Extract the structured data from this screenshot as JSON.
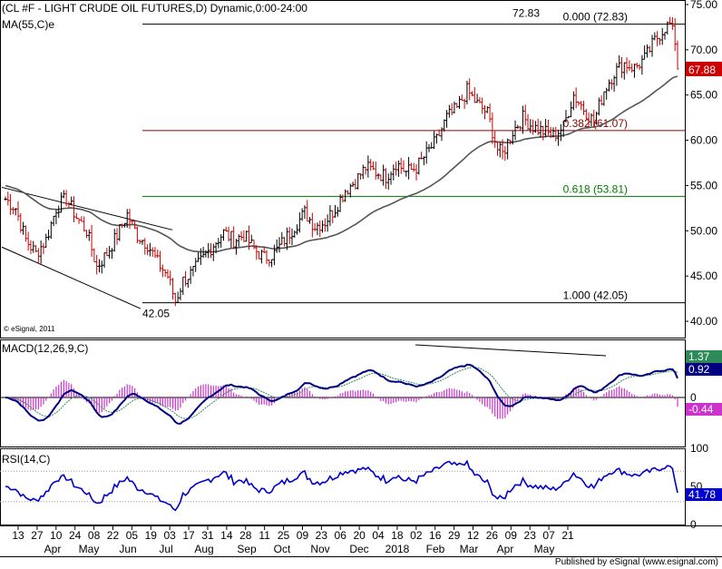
{
  "header": {
    "title": "(CL #F - LIGHT CRUDE OIL FUTURES,D) Dynamic,0:00-24:00",
    "ma_label": "MA(55,C)e",
    "copyright": "© eSignal, 2011"
  },
  "footer": {
    "text": "Published by eSignal (www.esignal.com)"
  },
  "chart_data": [
    {
      "type": "candlestick",
      "panel": "price",
      "y_ticks": [
        "75.00",
        "70.00",
        "65.00",
        "60.00",
        "55.00",
        "50.00",
        "45.00",
        "40.00"
      ],
      "ylim": [
        38.2,
        75.5
      ],
      "x_ticks": [
        "13",
        "27",
        "10",
        "24",
        "08",
        "22",
        "05",
        "19",
        "03",
        "17",
        "31",
        "14",
        "28",
        "11",
        "25",
        "09",
        "23",
        "06",
        "20",
        "04",
        "18",
        "02",
        "16",
        "29",
        "12",
        "26",
        "09",
        "23",
        "07",
        "21"
      ],
      "months": [
        "Apr",
        "May",
        "Jun",
        "Jul",
        "Aug",
        "Sep",
        "Oct",
        "Nov",
        "Dec",
        "2018",
        "Feb",
        "Mar",
        "Apr",
        "May"
      ],
      "last_price": "67.88",
      "price_path": [
        [
          0,
          53.5
        ],
        [
          4,
          52.5
        ],
        [
          8,
          49.0
        ],
        [
          12,
          47.5
        ],
        [
          16,
          49.0
        ],
        [
          20,
          52.5
        ],
        [
          24,
          53.6
        ],
        [
          28,
          51.5
        ],
        [
          32,
          50.0
        ],
        [
          36,
          46.0
        ],
        [
          40,
          47.5
        ],
        [
          44,
          49.5
        ],
        [
          48,
          51.8
        ],
        [
          52,
          49.5
        ],
        [
          56,
          48.5
        ],
        [
          60,
          46.5
        ],
        [
          64,
          45.0
        ],
        [
          67,
          42.2
        ],
        [
          70,
          44.5
        ],
        [
          74,
          45.5
        ],
        [
          78,
          47.0
        ],
        [
          82,
          48.5
        ],
        [
          86,
          49.8
        ],
        [
          90,
          49.0
        ],
        [
          94,
          49.5
        ],
        [
          98,
          48.0
        ],
        [
          102,
          47.0
        ],
        [
          106,
          47.5
        ],
        [
          110,
          49.0
        ],
        [
          114,
          50.5
        ],
        [
          118,
          52.0
        ],
        [
          122,
          50.5
        ],
        [
          126,
          51.0
        ],
        [
          130,
          52.5
        ],
        [
          134,
          54.5
        ],
        [
          138,
          55.5
        ],
        [
          142,
          57.0
        ],
        [
          146,
          56.5
        ],
        [
          150,
          56.0
        ],
        [
          154,
          57.5
        ],
        [
          158,
          56.5
        ],
        [
          162,
          57.0
        ],
        [
          166,
          58.5
        ],
        [
          170,
          60.0
        ],
        [
          174,
          62.5
        ],
        [
          178,
          63.5
        ],
        [
          182,
          65.5
        ],
        [
          186,
          64.0
        ],
        [
          190,
          63.0
        ],
        [
          194,
          59.0
        ],
        [
          196,
          58.5
        ],
        [
          200,
          61.0
        ],
        [
          204,
          62.5
        ],
        [
          208,
          61.5
        ],
        [
          212,
          61.0
        ],
        [
          216,
          60.5
        ],
        [
          220,
          61.5
        ],
        [
          224,
          65.0
        ],
        [
          228,
          63.5
        ],
        [
          232,
          62.0
        ],
        [
          236,
          65.5
        ],
        [
          240,
          67.5
        ],
        [
          244,
          68.5
        ],
        [
          248,
          68.0
        ],
        [
          252,
          69.0
        ],
        [
          256,
          71.0
        ],
        [
          260,
          72.5
        ],
        [
          262,
          72.8
        ],
        [
          264,
          71.0
        ],
        [
          265,
          67.88
        ]
      ],
      "moving_average": "MA(55,C)e",
      "fibonacci": [
        {
          "ratio": "0.000 (72.83)",
          "value": 72.83,
          "color": "#000000"
        },
        {
          "ratio": "0.382 (61.07)",
          "value": 61.07,
          "color": "#8b0000"
        },
        {
          "ratio": "0.618 (53.81)",
          "value": 53.81,
          "color": "#007a00"
        },
        {
          "ratio": "1.000 (42.05)",
          "value": 42.05,
          "color": "#000000"
        }
      ],
      "annotations": [
        "72.83",
        "42.05"
      ]
    },
    {
      "type": "macd",
      "panel": "macd",
      "label": "MACD(12,26,9,C)",
      "y_ticks": [
        "0"
      ],
      "ylim": [
        -3.2,
        3.8
      ],
      "values": {
        "macd_signal": "1.37",
        "macd": "0.92",
        "histogram": "-0.44"
      }
    },
    {
      "type": "line",
      "panel": "rsi",
      "label": "RSI(14,C)",
      "y_ticks": [
        "100",
        "50",
        "0"
      ],
      "ylim": [
        0,
        100
      ],
      "last_value": "41.78"
    }
  ],
  "colors": {
    "candle": "#000000",
    "down_candle": "#cc0000",
    "ma": "#555555",
    "macd_line": "#000080",
    "macd_signal": "#2e8b57",
    "histogram": "#cc33cc",
    "rsi": "#0000cc",
    "last_price_box": "#cc0000",
    "macd_box_signal": "#2e8b57",
    "macd_box_line": "#000080",
    "hist_box": "#cc33cc",
    "rsi_box": "#0000cc"
  }
}
